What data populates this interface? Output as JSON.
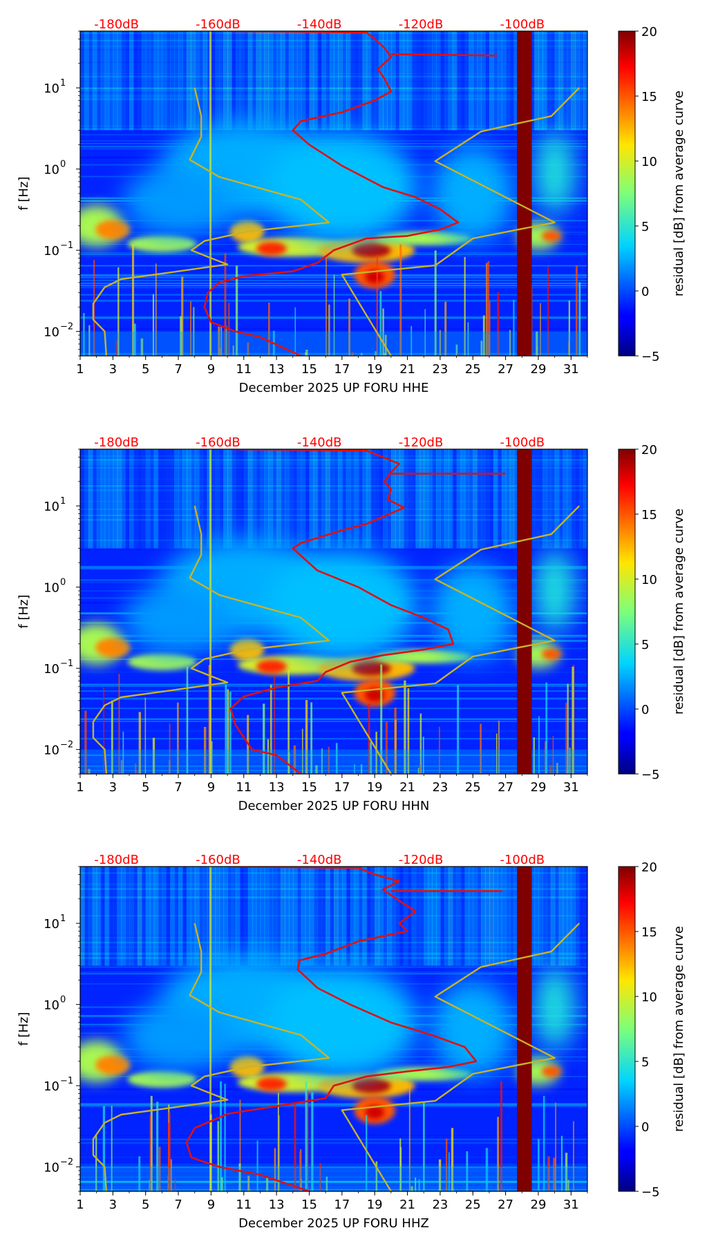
{
  "chart_data": [
    {
      "type": "heatmap",
      "xlabel": "December 2025 UP FORU  HHE",
      "ylabel": "f [Hz]",
      "x_ticks": [
        "1",
        "3",
        "5",
        "7",
        "9",
        "11",
        "13",
        "15",
        "17",
        "19",
        "21",
        "23",
        "25",
        "27",
        "29",
        "31"
      ],
      "y_ticks": [
        {
          "base": "10",
          "exp": "1"
        },
        {
          "base": "10",
          "exp": "0"
        },
        {
          "base": "10",
          "exp": "−1"
        },
        {
          "base": "10",
          "exp": "−2"
        }
      ],
      "xlim": [
        1,
        32
      ],
      "ylim_hz": [
        0.005,
        50
      ],
      "db_scale": [
        "-180dB",
        "-160dB",
        "-140dB",
        "-120dB",
        "-100dB"
      ],
      "colorbar": {
        "label": "residual [dB] from average curve",
        "range": [
          -5,
          20
        ],
        "ticks": [
          "20",
          "15",
          "10",
          "5",
          "0",
          "−5"
        ]
      },
      "series": [
        {
          "name": "noise model (yellow)",
          "color": "#c8b428",
          "points": [
            [
              8,
              10
            ],
            [
              8.4,
              4.5
            ],
            [
              8.4,
              2.5
            ],
            [
              7.7,
              1.3
            ],
            [
              9.5,
              0.8
            ],
            [
              14.5,
              0.42
            ],
            [
              16.2,
              0.22
            ],
            [
              11.2,
              0.17
            ],
            [
              8.6,
              0.13
            ],
            [
              7.8,
              0.1
            ],
            [
              9,
              0.08
            ],
            [
              10,
              0.067
            ],
            [
              7,
              0.055
            ],
            [
              3.5,
              0.044
            ],
            [
              2.5,
              0.035
            ],
            [
              1.8,
              0.022
            ],
            [
              1.8,
              0.014
            ],
            [
              2.5,
              0.01
            ],
            [
              2.6,
              0.005
            ]
          ]
        },
        {
          "name": "noise model upper (yellow)",
          "color": "#c8b428",
          "points": [
            [
              31.5,
              10
            ],
            [
              29.8,
              4.5
            ],
            [
              25.5,
              2.9
            ],
            [
              22.7,
              1.25
            ],
            [
              30,
              0.22
            ],
            [
              25,
              0.14
            ],
            [
              22.7,
              0.065
            ],
            [
              17,
              0.05
            ],
            [
              20,
              0.005
            ]
          ]
        },
        {
          "name": "PSD (red)",
          "color": "#e01010",
          "points": [
            [
              10.2,
              50
            ],
            [
              18.5,
              48
            ],
            [
              19,
              40
            ],
            [
              19.6,
              31
            ],
            [
              20,
              24
            ],
            [
              19.2,
              17
            ],
            [
              19.6,
              13
            ],
            [
              20,
              9
            ],
            [
              19,
              7
            ],
            [
              17,
              5
            ],
            [
              14.5,
              3.9
            ],
            [
              14,
              3
            ],
            [
              15,
              2
            ],
            [
              17,
              1.1
            ],
            [
              19.5,
              0.6
            ],
            [
              21.5,
              0.45
            ],
            [
              23,
              0.32
            ],
            [
              24.1,
              0.22
            ],
            [
              23,
              0.18
            ],
            [
              21,
              0.15
            ],
            [
              18.5,
              0.14
            ],
            [
              16.5,
              0.1
            ],
            [
              15.5,
              0.07
            ],
            [
              14,
              0.055
            ],
            [
              11,
              0.048
            ],
            [
              9.5,
              0.04
            ],
            [
              8.8,
              0.03
            ],
            [
              8.6,
              0.02
            ],
            [
              9,
              0.013
            ],
            [
              10.5,
              0.01
            ],
            [
              12,
              0.0085
            ],
            [
              14.5,
              0.005
            ]
          ]
        },
        {
          "name": "PSD spike (red)",
          "color": "#e01010",
          "points": [
            [
              20,
              26
            ],
            [
              26.5,
              25
            ]
          ]
        }
      ]
    },
    {
      "type": "heatmap",
      "xlabel": "December 2025 UP FORU  HHN",
      "ylabel": "f [Hz]",
      "x_ticks": [
        "1",
        "3",
        "5",
        "7",
        "9",
        "11",
        "13",
        "15",
        "17",
        "19",
        "21",
        "23",
        "25",
        "27",
        "29",
        "31"
      ],
      "y_ticks": [
        {
          "base": "10",
          "exp": "1"
        },
        {
          "base": "10",
          "exp": "0"
        },
        {
          "base": "10",
          "exp": "−1"
        },
        {
          "base": "10",
          "exp": "−2"
        }
      ],
      "xlim": [
        1,
        32
      ],
      "ylim_hz": [
        0.005,
        50
      ],
      "db_scale": [
        "-180dB",
        "-160dB",
        "-140dB",
        "-120dB",
        "-100dB"
      ],
      "colorbar": {
        "label": "residual [dB] from average curve",
        "range": [
          -5,
          20
        ],
        "ticks": [
          "20",
          "15",
          "10",
          "5",
          "0",
          "−5"
        ]
      },
      "series": [
        {
          "name": "noise model (yellow)",
          "color": "#c8b428",
          "points": [
            [
              8,
              10
            ],
            [
              8.4,
              4.5
            ],
            [
              8.4,
              2.5
            ],
            [
              7.7,
              1.3
            ],
            [
              9.5,
              0.8
            ],
            [
              14.5,
              0.42
            ],
            [
              16.2,
              0.22
            ],
            [
              11.2,
              0.17
            ],
            [
              8.6,
              0.13
            ],
            [
              7.8,
              0.1
            ],
            [
              9,
              0.08
            ],
            [
              10,
              0.067
            ],
            [
              7,
              0.055
            ],
            [
              3.5,
              0.044
            ],
            [
              2.5,
              0.035
            ],
            [
              1.8,
              0.022
            ],
            [
              1.8,
              0.014
            ],
            [
              2.5,
              0.01
            ],
            [
              2.6,
              0.005
            ]
          ]
        },
        {
          "name": "noise model upper (yellow)",
          "color": "#c8b428",
          "points": [
            [
              31.5,
              10
            ],
            [
              29.8,
              4.5
            ],
            [
              25.5,
              2.9
            ],
            [
              22.7,
              1.25
            ],
            [
              30,
              0.22
            ],
            [
              25,
              0.14
            ],
            [
              22.7,
              0.065
            ],
            [
              17,
              0.05
            ],
            [
              20,
              0.005
            ]
          ]
        },
        {
          "name": "PSD (red)",
          "color": "#e01010",
          "points": [
            [
              10.2,
              50
            ],
            [
              18.5,
              48
            ],
            [
              19.5,
              40
            ],
            [
              20.5,
              33
            ],
            [
              20,
              26
            ],
            [
              19.6,
              20
            ],
            [
              20,
              16
            ],
            [
              19.8,
              12
            ],
            [
              20.8,
              9.5
            ],
            [
              18.5,
              6
            ],
            [
              17,
              5
            ],
            [
              14.5,
              3.5
            ],
            [
              14,
              3
            ],
            [
              15.5,
              1.6
            ],
            [
              18,
              1.0
            ],
            [
              20,
              0.6
            ],
            [
              22,
              0.42
            ],
            [
              23.5,
              0.3
            ],
            [
              23.8,
              0.2
            ],
            [
              22,
              0.17
            ],
            [
              19.5,
              0.145
            ],
            [
              17.5,
              0.12
            ],
            [
              16,
              0.09
            ],
            [
              15.5,
              0.07
            ],
            [
              13,
              0.058
            ],
            [
              11,
              0.045
            ],
            [
              10.2,
              0.032
            ],
            [
              10.5,
              0.02
            ],
            [
              11.5,
              0.01
            ],
            [
              13,
              0.0085
            ],
            [
              14.5,
              0.005
            ]
          ]
        },
        {
          "name": "PSD spike (red)",
          "color": "#e01010",
          "points": [
            [
              20,
              25
            ],
            [
              27,
              25
            ]
          ]
        }
      ]
    },
    {
      "type": "heatmap",
      "xlabel": "December 2025 UP FORU  HHZ",
      "ylabel": "f [Hz]",
      "x_ticks": [
        "1",
        "3",
        "5",
        "7",
        "9",
        "11",
        "13",
        "15",
        "17",
        "19",
        "21",
        "23",
        "25",
        "27",
        "29",
        "31"
      ],
      "y_ticks": [
        {
          "base": "10",
          "exp": "1"
        },
        {
          "base": "10",
          "exp": "0"
        },
        {
          "base": "10",
          "exp": "−1"
        },
        {
          "base": "10",
          "exp": "−2"
        }
      ],
      "xlim": [
        1,
        32
      ],
      "ylim_hz": [
        0.005,
        50
      ],
      "db_scale": [
        "-180dB",
        "-160dB",
        "-140dB",
        "-120dB",
        "-100dB"
      ],
      "colorbar": {
        "label": "residual [dB] from average curve",
        "range": [
          -5,
          20
        ],
        "ticks": [
          "20",
          "15",
          "10",
          "5",
          "0",
          "−5"
        ]
      },
      "series": [
        {
          "name": "noise model (yellow)",
          "color": "#c8b428",
          "points": [
            [
              8,
              10
            ],
            [
              8.4,
              4.5
            ],
            [
              8.4,
              2.5
            ],
            [
              7.7,
              1.3
            ],
            [
              9.5,
              0.8
            ],
            [
              14.5,
              0.42
            ],
            [
              16.2,
              0.22
            ],
            [
              11.2,
              0.17
            ],
            [
              8.6,
              0.13
            ],
            [
              7.8,
              0.1
            ],
            [
              9,
              0.08
            ],
            [
              10,
              0.067
            ],
            [
              7,
              0.055
            ],
            [
              3.5,
              0.044
            ],
            [
              2.5,
              0.035
            ],
            [
              1.8,
              0.022
            ],
            [
              1.8,
              0.014
            ],
            [
              2.5,
              0.01
            ],
            [
              2.6,
              0.005
            ]
          ]
        },
        {
          "name": "noise model upper (yellow)",
          "color": "#c8b428",
          "points": [
            [
              31.5,
              10
            ],
            [
              29.8,
              4.5
            ],
            [
              25.5,
              2.9
            ],
            [
              22.7,
              1.25
            ],
            [
              30,
              0.22
            ],
            [
              25,
              0.14
            ],
            [
              22.7,
              0.065
            ],
            [
              17,
              0.05
            ],
            [
              20,
              0.005
            ]
          ]
        },
        {
          "name": "PSD (red)",
          "color": "#e01010",
          "points": [
            [
              10.2,
              50
            ],
            [
              18,
              48
            ],
            [
              19,
              40
            ],
            [
              20.5,
              33
            ],
            [
              19.5,
              26
            ],
            [
              20.5,
              19
            ],
            [
              21.5,
              14
            ],
            [
              20.5,
              10
            ],
            [
              21,
              8
            ],
            [
              18,
              6
            ],
            [
              16,
              4.2
            ],
            [
              14.4,
              3.5
            ],
            [
              14.3,
              2.7
            ],
            [
              15.5,
              1.6
            ],
            [
              17.5,
              1.0
            ],
            [
              20,
              0.6
            ],
            [
              22.5,
              0.42
            ],
            [
              24.5,
              0.3
            ],
            [
              25.2,
              0.2
            ],
            [
              23.5,
              0.17
            ],
            [
              21,
              0.15
            ],
            [
              18.5,
              0.13
            ],
            [
              16.5,
              0.1
            ],
            [
              16,
              0.07
            ],
            [
              13,
              0.056
            ],
            [
              10,
              0.045
            ],
            [
              8,
              0.03
            ],
            [
              7.5,
              0.02
            ],
            [
              7.8,
              0.013
            ],
            [
              9.5,
              0.01
            ],
            [
              12,
              0.008
            ],
            [
              15,
              0.005
            ]
          ]
        },
        {
          "name": "PSD spike (red)",
          "color": "#e01010",
          "points": [
            [
              20,
              25
            ],
            [
              26.8,
              25
            ]
          ]
        }
      ]
    }
  ]
}
